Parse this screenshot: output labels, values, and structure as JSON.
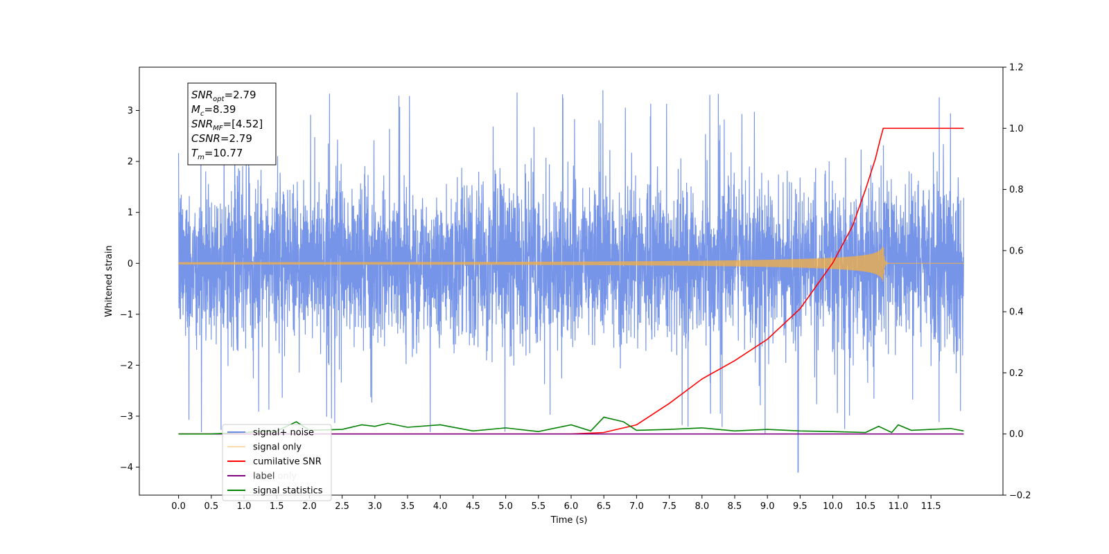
{
  "chart_data": {
    "type": "line",
    "xlabel": "Time (s)",
    "ylabel": "Whitened strain",
    "y2label": "",
    "xlim": [
      -0.6,
      12.6
    ],
    "ylim": [
      -4.55,
      3.85
    ],
    "y2lim": [
      -0.2,
      1.2
    ],
    "x_ticks": [
      0.0,
      0.5,
      1.0,
      1.5,
      2.0,
      2.5,
      3.0,
      3.5,
      4.0,
      4.5,
      5.0,
      5.5,
      6.0,
      6.5,
      7.0,
      7.5,
      8.0,
      8.5,
      9.0,
      9.5,
      10.0,
      10.5,
      11.0,
      11.5
    ],
    "x_tick_labels": [
      "0.0",
      "0.5",
      "1.0",
      "1.5",
      "2.0",
      "2.5",
      "3.0",
      "3.5",
      "4.0",
      "4.5",
      "5.0",
      "5.5",
      "6.0",
      "6.5",
      "7.0",
      "7.5",
      "8.0",
      "8.5",
      "9.0",
      "9.5",
      "10.0",
      "10.5",
      "11.0",
      "11.5"
    ],
    "y_ticks": [
      -4,
      -3,
      -2,
      -1,
      0,
      1,
      2,
      3
    ],
    "y_tick_labels": [
      "−4",
      "−3",
      "−2",
      "−1",
      "0",
      "1",
      "2",
      "3"
    ],
    "y2_ticks": [
      -0.2,
      0.0,
      0.2,
      0.4,
      0.6,
      0.8,
      1.0,
      1.2
    ],
    "y2_tick_labels": [
      "−0.2",
      "0.0",
      "0.2",
      "0.4",
      "0.6",
      "0.8",
      "1.0",
      "1.2"
    ],
    "grid": false,
    "legend_position": "lower-left",
    "series": [
      {
        "name": "signal+ noise",
        "axis": "left",
        "color": "#6a8be6",
        "x_range": [
          0.0,
          12.0
        ],
        "noise_sigma": 1.0,
        "peak_max": 3.5,
        "peak_min": -4.1,
        "peak_min_time": 9.47
      },
      {
        "name": "signal only",
        "axis": "left",
        "color": "#f5b041",
        "x_range": [
          0.0,
          12.0
        ],
        "merger_time": 10.77,
        "peak_amplitude": 0.38
      },
      {
        "name": "cumilative SNR",
        "axis": "right",
        "color": "#ff0000",
        "x": [
          0.0,
          6.0,
          6.5,
          7.0,
          7.5,
          8.0,
          8.5,
          9.0,
          9.5,
          10.0,
          10.3,
          10.5,
          10.65,
          10.72,
          10.77,
          12.0
        ],
        "values": [
          0.0,
          0.0,
          0.005,
          0.03,
          0.1,
          0.18,
          0.24,
          0.31,
          0.41,
          0.56,
          0.68,
          0.8,
          0.9,
          0.96,
          1.0,
          1.0
        ]
      },
      {
        "name": "label",
        "axis": "right",
        "color": "#800080",
        "x": [
          0.0,
          12.0
        ],
        "values": [
          0.0,
          0.0
        ]
      },
      {
        "name": "label only",
        "axis": "right",
        "color": "#c8a2d8",
        "x": [
          0.0,
          12.0
        ],
        "values": [
          0.0,
          0.0
        ]
      },
      {
        "name": "signal statistics",
        "axis": "right",
        "color": "#008000",
        "x": [
          0.0,
          0.5,
          1.0,
          1.5,
          1.8,
          2.0,
          2.5,
          2.8,
          3.0,
          3.2,
          3.5,
          4.0,
          4.5,
          5.0,
          5.5,
          6.0,
          6.3,
          6.5,
          6.8,
          7.0,
          7.5,
          8.0,
          8.5,
          9.0,
          9.5,
          10.0,
          10.5,
          10.7,
          10.9,
          11.0,
          11.2,
          11.5,
          11.8,
          12.0
        ],
        "values": [
          0.0,
          0.0,
          0.005,
          0.01,
          0.04,
          0.012,
          0.015,
          0.03,
          0.025,
          0.035,
          0.022,
          0.03,
          0.01,
          0.02,
          0.008,
          0.03,
          0.01,
          0.055,
          0.04,
          0.012,
          0.015,
          0.02,
          0.01,
          0.015,
          0.01,
          0.008,
          0.005,
          0.025,
          0.005,
          0.03,
          0.012,
          0.015,
          0.018,
          0.01
        ]
      }
    ],
    "annotation": {
      "lines": [
        {
          "main": "SNR",
          "sub": "opt",
          "rest": "=2.79"
        },
        {
          "main": "M",
          "sub": "c",
          "rest": "=8.39"
        },
        {
          "main": "SNR",
          "sub": "MF",
          "rest": "=[4.52]"
        },
        {
          "main": "CSNR",
          "sub": "",
          "rest": "=2.79"
        },
        {
          "main": "T",
          "sub": "m",
          "rest": "=10.77"
        }
      ]
    }
  }
}
